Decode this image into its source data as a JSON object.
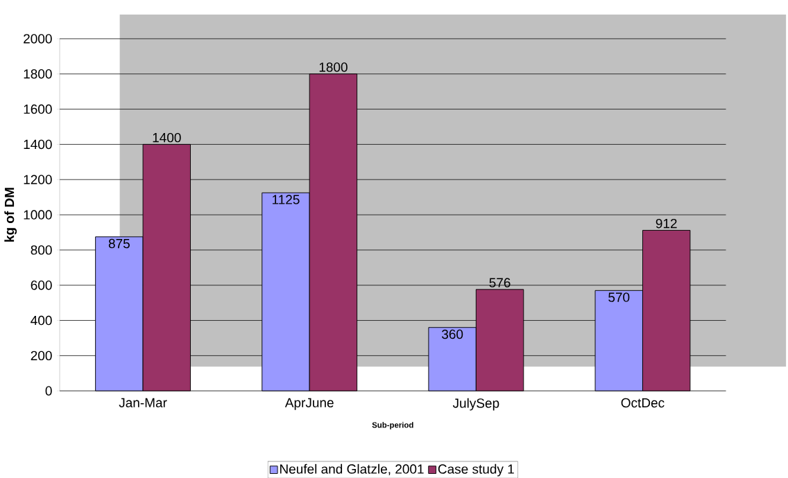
{
  "chart_data": {
    "type": "bar",
    "xlabel": "Sub-period",
    "ylabel": "kg of DM",
    "categories": [
      "Jan-Mar",
      "AprJune",
      "JulySep",
      "OctDec"
    ],
    "series": [
      {
        "name": "Neufel and Glatzle, 2001",
        "color": "#9999ff",
        "values": [
          875,
          1125,
          360,
          570
        ]
      },
      {
        "name": "Case study 1",
        "color": "#993366",
        "values": [
          1400,
          1800,
          576,
          912
        ]
      }
    ],
    "ylim": [
      0,
      2000
    ],
    "yticks": [
      0,
      200,
      400,
      600,
      800,
      1000,
      1200,
      1400,
      1600,
      1800,
      2000
    ],
    "grid": "y",
    "legend": "bottom",
    "data_labels": true
  }
}
